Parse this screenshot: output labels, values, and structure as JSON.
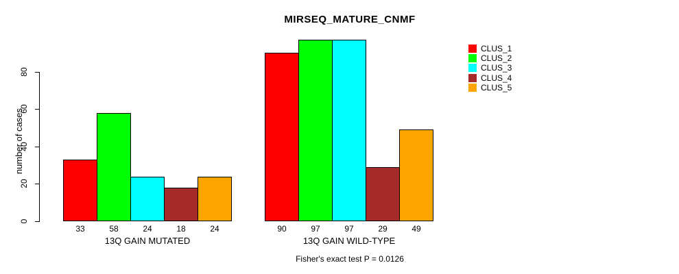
{
  "title": "MIRSEQ_MATURE_CNMF",
  "footer": "Fisher's exact test P = 0.0126",
  "chart_data": {
    "type": "bar",
    "title": "MIRSEQ_MATURE_CNMF",
    "xlabel": "",
    "ylabel": "number of cases",
    "ylim": [
      0,
      100
    ],
    "yticks": [
      0,
      20,
      40,
      60,
      80
    ],
    "grid": false,
    "legend_position": "right-outside",
    "categories": [
      "13Q GAIN MUTATED",
      "13Q GAIN WILD-TYPE"
    ],
    "series": [
      {
        "name": "CLUS_1",
        "color": "#FF0000",
        "values": [
          33,
          90
        ]
      },
      {
        "name": "CLUS_2",
        "color": "#00FF00",
        "values": [
          58,
          97
        ]
      },
      {
        "name": "CLUS_3",
        "color": "#00FFFF",
        "values": [
          24,
          97
        ]
      },
      {
        "name": "CLUS_4",
        "color": "#A52A2A",
        "values": [
          18,
          29
        ]
      },
      {
        "name": "CLUS_5",
        "color": "#FFA500",
        "values": [
          24,
          49
        ]
      }
    ],
    "bar_value_labels": true,
    "annotation": "Fisher's exact test P = 0.0126"
  }
}
